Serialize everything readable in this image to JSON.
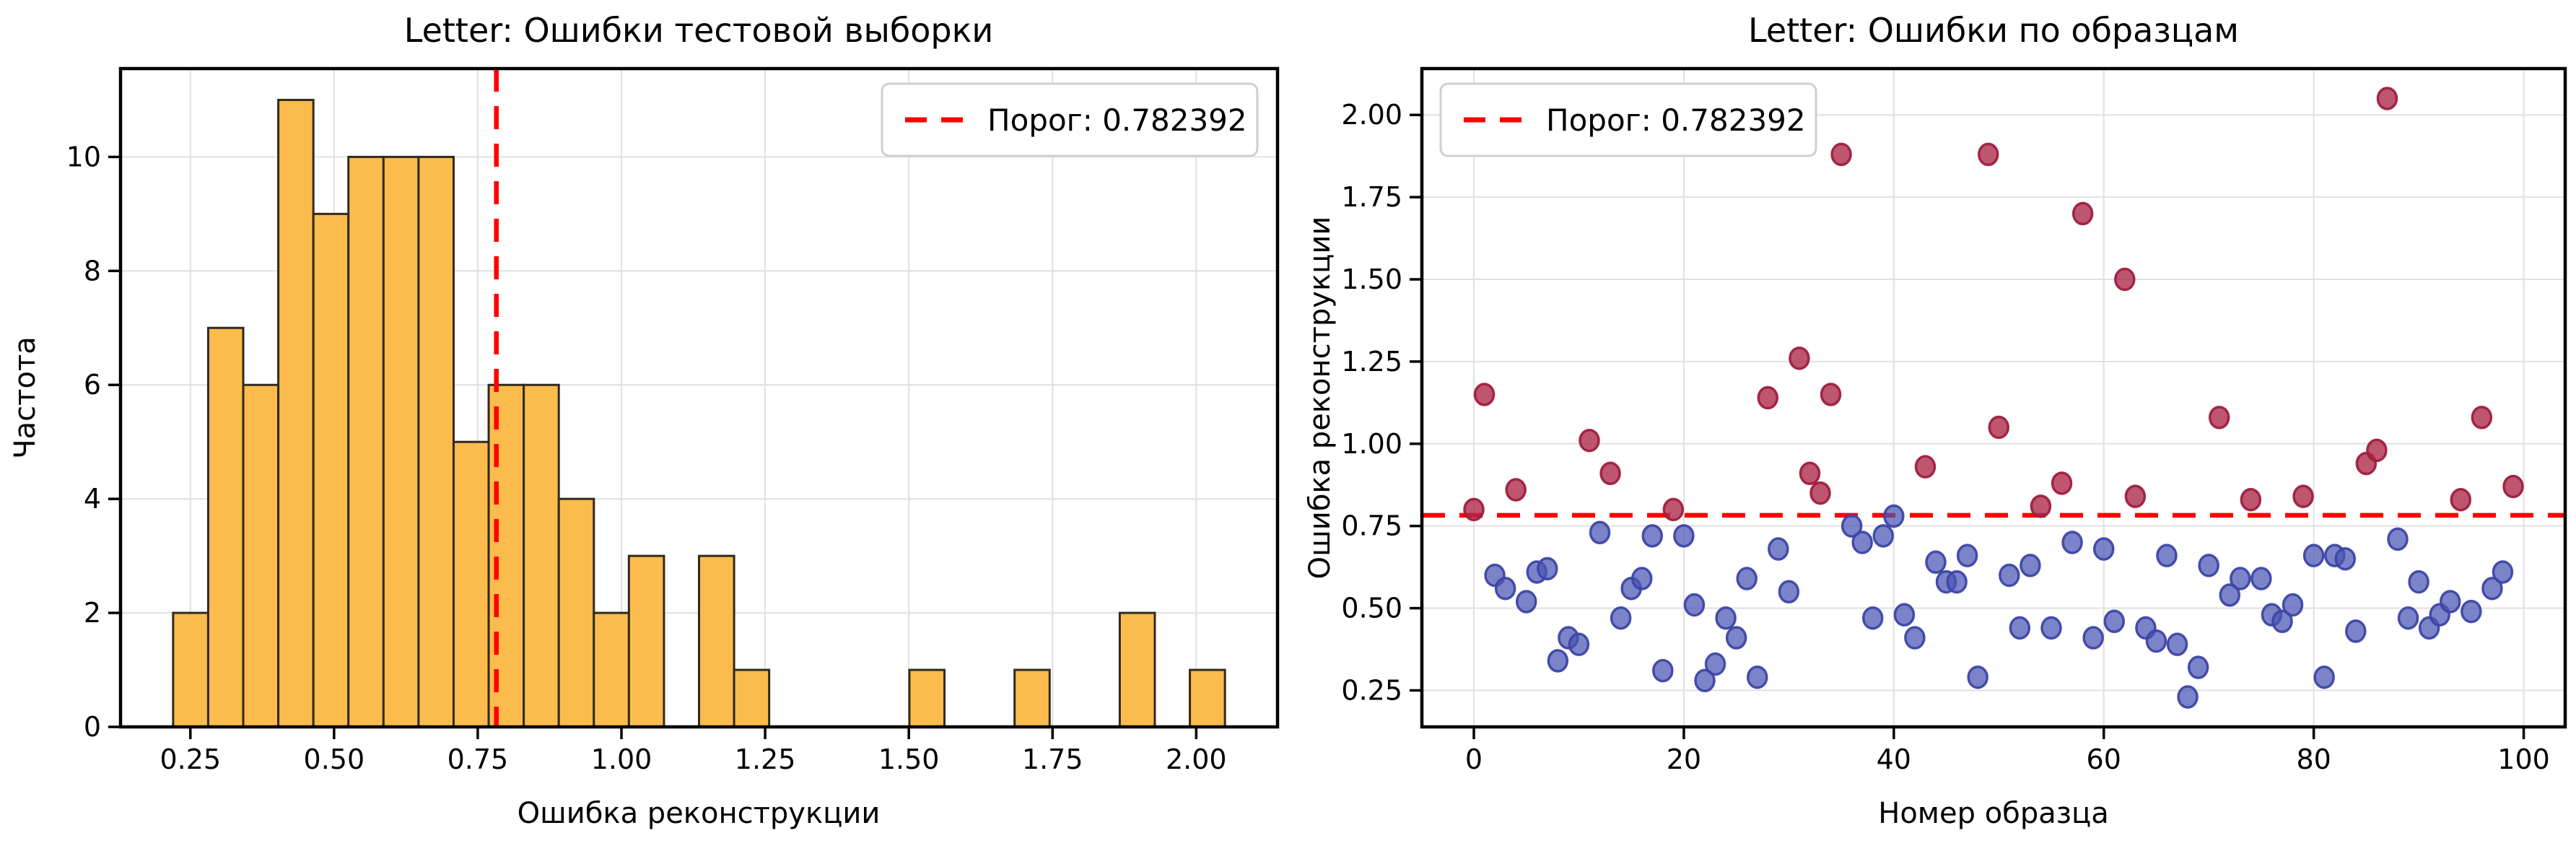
{
  "figure": {
    "background": "#ffffff",
    "grid_color": "#e0e0e0",
    "spine_color": "#000000",
    "threshold_color": "#ff0000"
  },
  "chart_data": [
    {
      "type": "bar",
      "kind": "histogram",
      "title": "Letter: Ошибки тестовой выборки",
      "xlabel": "Ошибка реконструкции",
      "ylabel": "Частота",
      "legend_label": "Порог: 0.782392",
      "legend_position": "upper right",
      "threshold": 0.782392,
      "bins": {
        "start": 0.22,
        "width": 0.061,
        "counts": [
          2,
          7,
          6,
          11,
          9,
          10,
          10,
          10,
          5,
          6,
          6,
          4,
          2,
          3,
          0,
          3,
          1,
          0,
          0,
          0,
          0,
          1,
          0,
          0,
          1,
          0,
          0,
          2,
          0,
          1
        ]
      },
      "bar_fill": "#fcbc4d",
      "bar_edge": "#2f2a1f",
      "xlim": [
        0.1285,
        2.1415
      ],
      "ylim": [
        0,
        11.55
      ],
      "xticks": [
        0.25,
        0.5,
        0.75,
        1.0,
        1.25,
        1.5,
        1.75,
        2.0
      ],
      "xtick_labels": [
        "0.25",
        "0.50",
        "0.75",
        "1.00",
        "1.25",
        "1.50",
        "1.75",
        "2.00"
      ],
      "yticks": [
        0,
        2,
        4,
        6,
        8,
        10
      ],
      "ytick_labels": [
        "0",
        "2",
        "4",
        "6",
        "8",
        "10"
      ],
      "grid": true
    },
    {
      "type": "scatter",
      "title": "Letter: Ошибки по образцам",
      "xlabel": "Номер образца",
      "ylabel": "Ошибка реконструкции",
      "legend_label": "Порог: 0.782392",
      "legend_position": "upper left",
      "threshold": 0.782392,
      "xlim": [
        -4.95,
        103.95
      ],
      "ylim": [
        0.139,
        2.141
      ],
      "xticks": [
        0,
        20,
        40,
        60,
        80,
        100
      ],
      "xtick_labels": [
        "0",
        "20",
        "40",
        "60",
        "80",
        "100"
      ],
      "yticks": [
        0.25,
        0.5,
        0.75,
        1.0,
        1.25,
        1.5,
        1.75,
        2.0
      ],
      "ytick_labels": [
        "0.25",
        "0.50",
        "0.75",
        "1.00",
        "1.25",
        "1.50",
        "1.75",
        "2.00"
      ],
      "grid": true,
      "series": [
        {
          "name": "below-threshold",
          "fill": "#4a54b4",
          "edge": "#3d46a6",
          "fill_opacity": 0.72,
          "points": [
            [
              2,
              0.6
            ],
            [
              3,
              0.56
            ],
            [
              5,
              0.52
            ],
            [
              6,
              0.61
            ],
            [
              7,
              0.62
            ],
            [
              8,
              0.34
            ],
            [
              9,
              0.41
            ],
            [
              10,
              0.39
            ],
            [
              12,
              0.73
            ],
            [
              14,
              0.47
            ],
            [
              15,
              0.56
            ],
            [
              16,
              0.59
            ],
            [
              17,
              0.72
            ],
            [
              18,
              0.31
            ],
            [
              20,
              0.72
            ],
            [
              21,
              0.51
            ],
            [
              22,
              0.28
            ],
            [
              23,
              0.33
            ],
            [
              24,
              0.47
            ],
            [
              25,
              0.41
            ],
            [
              26,
              0.59
            ],
            [
              27,
              0.29
            ],
            [
              29,
              0.68
            ],
            [
              30,
              0.55
            ],
            [
              36,
              0.75
            ],
            [
              37,
              0.7
            ],
            [
              38,
              0.47
            ],
            [
              39,
              0.72
            ],
            [
              40,
              0.78
            ],
            [
              41,
              0.48
            ],
            [
              42,
              0.41
            ],
            [
              44,
              0.64
            ],
            [
              45,
              0.58
            ],
            [
              46,
              0.58
            ],
            [
              47,
              0.66
            ],
            [
              48,
              0.29
            ],
            [
              51,
              0.6
            ],
            [
              52,
              0.44
            ],
            [
              53,
              0.63
            ],
            [
              55,
              0.44
            ],
            [
              57,
              0.7
            ],
            [
              59,
              0.41
            ],
            [
              60,
              0.68
            ],
            [
              61,
              0.46
            ],
            [
              64,
              0.44
            ],
            [
              65,
              0.4
            ],
            [
              66,
              0.66
            ],
            [
              67,
              0.39
            ],
            [
              68,
              0.23
            ],
            [
              69,
              0.32
            ],
            [
              70,
              0.63
            ],
            [
              72,
              0.54
            ],
            [
              73,
              0.59
            ],
            [
              75,
              0.59
            ],
            [
              76,
              0.48
            ],
            [
              77,
              0.46
            ],
            [
              78,
              0.51
            ],
            [
              80,
              0.66
            ],
            [
              81,
              0.29
            ],
            [
              82,
              0.66
            ],
            [
              83,
              0.65
            ],
            [
              84,
              0.43
            ],
            [
              88,
              0.71
            ],
            [
              89,
              0.47
            ],
            [
              90,
              0.58
            ],
            [
              91,
              0.44
            ],
            [
              92,
              0.48
            ],
            [
              93,
              0.52
            ],
            [
              95,
              0.49
            ],
            [
              97,
              0.56
            ],
            [
              98,
              0.61
            ]
          ]
        },
        {
          "name": "above-threshold",
          "fill": "#ad2747",
          "edge": "#9e1f3f",
          "fill_opacity": 0.78,
          "points": [
            [
              0,
              0.8
            ],
            [
              1,
              1.15
            ],
            [
              4,
              0.86
            ],
            [
              11,
              1.01
            ],
            [
              13,
              0.91
            ],
            [
              19,
              0.8
            ],
            [
              28,
              1.14
            ],
            [
              31,
              1.26
            ],
            [
              32,
              0.91
            ],
            [
              33,
              0.85
            ],
            [
              34,
              1.15
            ],
            [
              35,
              1.88
            ],
            [
              43,
              0.93
            ],
            [
              49,
              1.88
            ],
            [
              50,
              1.05
            ],
            [
              54,
              0.81
            ],
            [
              56,
              0.88
            ],
            [
              58,
              1.7
            ],
            [
              62,
              1.5
            ],
            [
              63,
              0.84
            ],
            [
              71,
              1.08
            ],
            [
              74,
              0.83
            ],
            [
              79,
              0.84
            ],
            [
              85,
              0.94
            ],
            [
              86,
              0.98
            ],
            [
              87,
              2.05
            ],
            [
              94,
              0.83
            ],
            [
              96,
              1.08
            ],
            [
              99,
              0.87
            ]
          ]
        }
      ]
    }
  ]
}
